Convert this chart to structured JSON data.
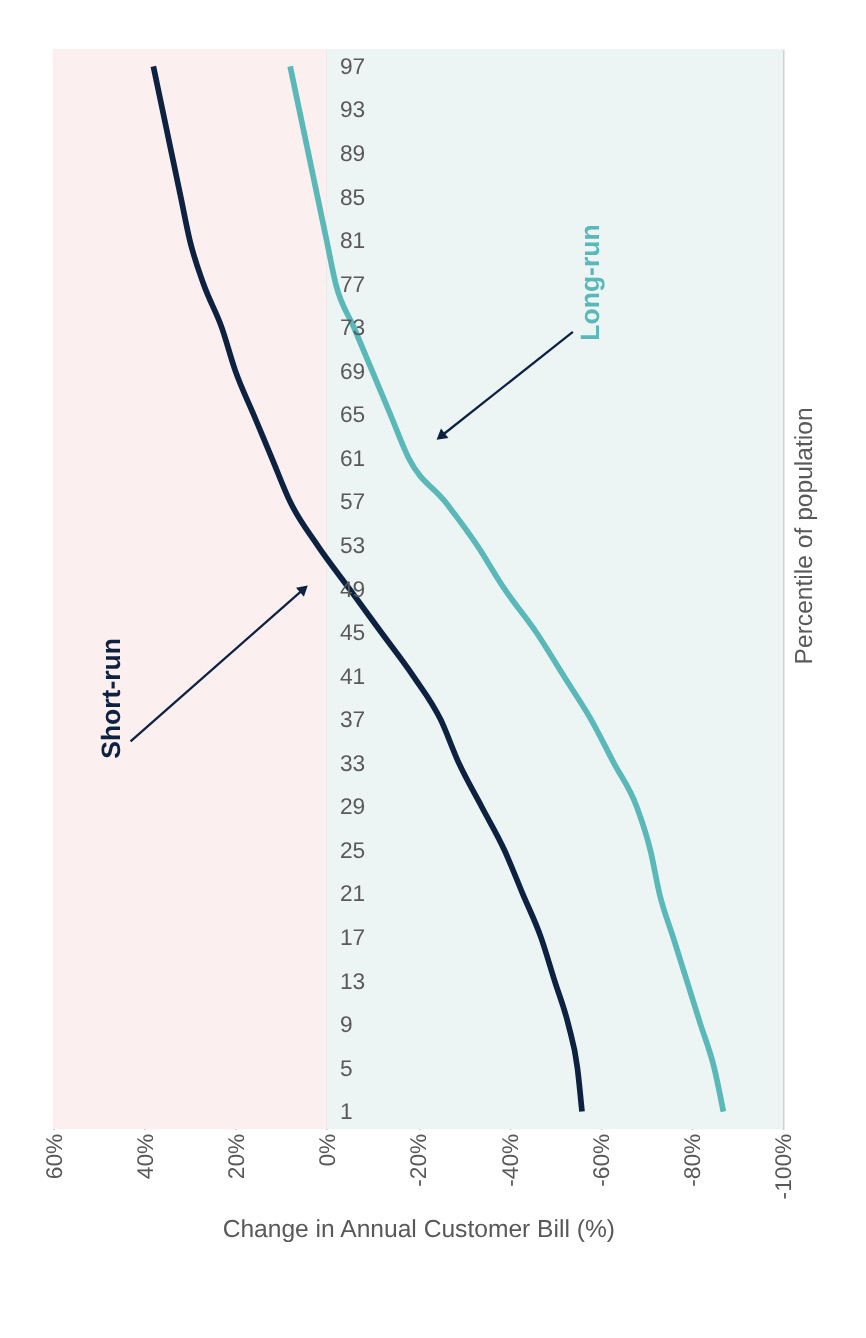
{
  "chart_data": {
    "type": "line",
    "orientation": "horizontal",
    "xlabel": "Change in Annual Customer Bill (%)",
    "ylabel": "Percentile of population",
    "categories": [
      "97",
      "93",
      "89",
      "85",
      "81",
      "77",
      "73",
      "69",
      "65",
      "61",
      "57",
      "53",
      "49",
      "45",
      "41",
      "37",
      "33",
      "29",
      "25",
      "21",
      "17",
      "13",
      "9",
      "5",
      "1"
    ],
    "series": [
      {
        "name": "Short-run",
        "color": "#0d2240",
        "values": [
          38,
          36,
          34,
          32,
          30,
          27,
          23,
          20,
          16,
          12,
          8,
          2,
          -5,
          -12,
          -19,
          -25,
          -29,
          -34,
          -39,
          -43,
          -47,
          -50,
          -53,
          -55,
          -56
        ]
      },
      {
        "name": "Long-run",
        "color": "#5bb8b8",
        "values": [
          8,
          6,
          4,
          2,
          0,
          -2,
          -6,
          -10,
          -14,
          -18,
          -26,
          -33,
          -39,
          -46,
          -52,
          -58,
          -63,
          -68,
          -71,
          -73,
          -76,
          -79,
          -82,
          -85,
          -87
        ]
      }
    ],
    "xlim": [
      60,
      -100
    ],
    "xticks": [
      {
        "value": 60,
        "label": "60%"
      },
      {
        "value": 40,
        "label": "40%"
      },
      {
        "value": 20,
        "label": "20%"
      },
      {
        "value": 0,
        "label": "0%"
      },
      {
        "value": -20,
        "label": "-20%"
      },
      {
        "value": -40,
        "label": "-40%"
      },
      {
        "value": -60,
        "label": "-60%"
      },
      {
        "value": -80,
        "label": "-80%"
      },
      {
        "value": -100,
        "label": "-100%"
      }
    ],
    "bands": [
      {
        "axis": "x",
        "from": 0,
        "to": 60,
        "color": "#fcefef"
      },
      {
        "axis": "x",
        "from": -100,
        "to": 0,
        "color": "#ecf5f4"
      }
    ],
    "grid": "x",
    "legend": false,
    "marker": "none",
    "line_style": "solid"
  }
}
